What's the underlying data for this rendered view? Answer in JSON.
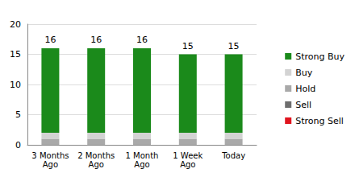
{
  "chart_data": {
    "type": "bar",
    "stacked": true,
    "grid": true,
    "legend": "right",
    "categories": [
      "3 Months\nAgo",
      "2 Months\nAgo",
      "1 Month\nAgo",
      "1 Week\nAgo",
      "Today"
    ],
    "series": [
      {
        "name": "Strong Sell",
        "color": "#e0141e",
        "values": [
          0,
          0,
          0,
          0,
          0
        ]
      },
      {
        "name": "Sell",
        "color": "#6e6e6e",
        "values": [
          0,
          0,
          0,
          0,
          0
        ]
      },
      {
        "name": "Hold",
        "color": "#a9a9a9",
        "values": [
          1,
          1,
          1,
          1,
          1
        ]
      },
      {
        "name": "Buy",
        "color": "#d3d3d3",
        "values": [
          1,
          1,
          1,
          1,
          1
        ]
      },
      {
        "name": "Strong Buy",
        "color": "#1b8a1b",
        "values": [
          14,
          14,
          14,
          13,
          13
        ]
      }
    ],
    "totals": [
      16,
      16,
      16,
      15,
      15
    ],
    "ylim": [
      0,
      20
    ],
    "yticks": [
      0,
      5,
      10,
      15,
      20
    ]
  }
}
